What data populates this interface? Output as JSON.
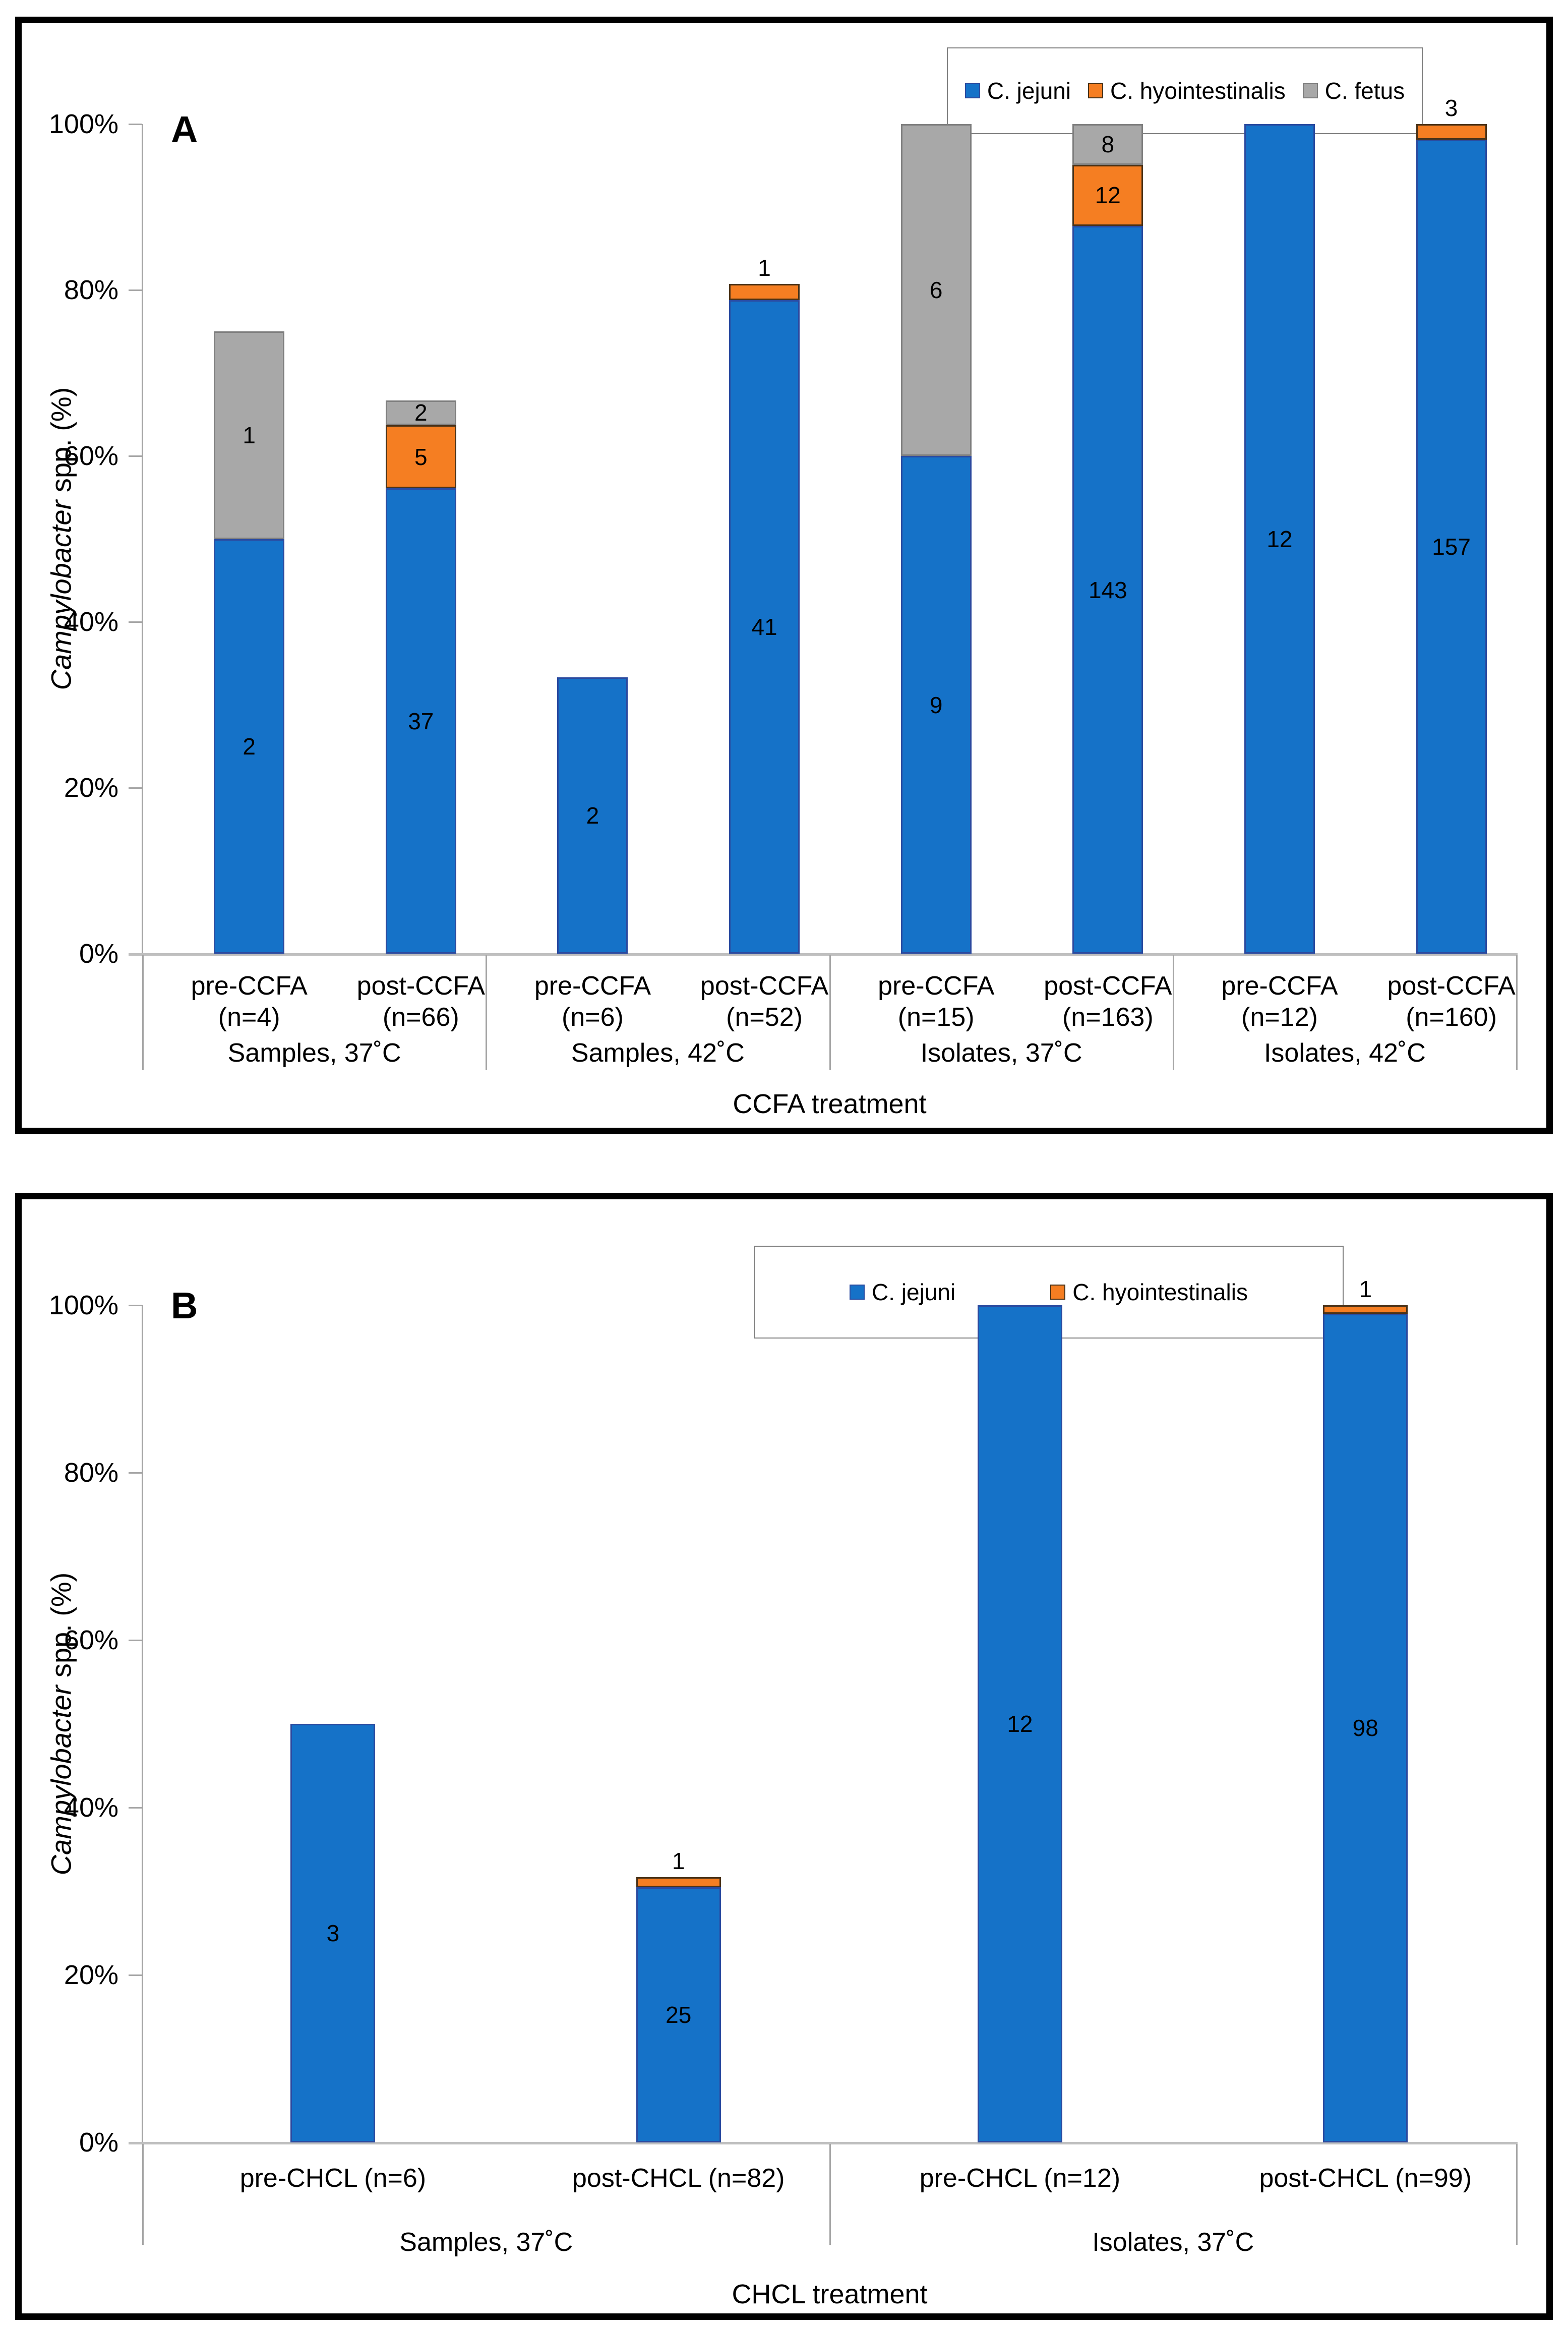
{
  "colors": {
    "c_jejuni_fill": "#1572C8",
    "c_jejuni_border": "#2B4BA0",
    "c_hyointestinalis_fill": "#F57E22",
    "c_hyointestinalis_border": "#4A3319",
    "c_fetus_fill": "#A8A8A8",
    "c_fetus_border": "#7F7F7F",
    "axis": "#A6A6A6",
    "x_baseline": "#BFBFBF",
    "panel_border": "#000000"
  },
  "chart_data": [
    {
      "type": "bar",
      "stacked": true,
      "panel_label": "A",
      "x_axis_title": "CCFA treatment",
      "y_axis_title": {
        "italic": "Campylobacter",
        "rest": " spp. (%)"
      },
      "ylim": [
        0,
        100
      ],
      "grid": false,
      "legend_position": "top-right",
      "yticks": [
        {
          "pct": 0,
          "label": "0%"
        },
        {
          "pct": 20,
          "label": "20%"
        },
        {
          "pct": 40,
          "label": "40%"
        },
        {
          "pct": 60,
          "label": "60%"
        },
        {
          "pct": 80,
          "label": "80%"
        },
        {
          "pct": 100,
          "label": "100%"
        }
      ],
      "series": [
        {
          "key": "jejuni",
          "name": "C. jejuni",
          "fill": "#1572C8",
          "border": "#2B4BA0"
        },
        {
          "key": "hyointestinalis",
          "name": "C. hyointestinalis",
          "fill": "#F57E22",
          "border": "#4A3319"
        },
        {
          "key": "fetus",
          "name": "C. fetus",
          "fill": "#A8A8A8",
          "border": "#7F7F7F"
        }
      ],
      "groups": [
        {
          "label": "Samples, 37˚C",
          "bars": [
            {
              "x_label_lines": [
                "pre-CCFA",
                "(n=4)"
              ],
              "segments": [
                {
                  "series": "jejuni",
                  "count": 2,
                  "pct": 50.0
                },
                {
                  "series": "fetus",
                  "count": 1,
                  "pct": 25.0
                }
              ]
            },
            {
              "x_label_lines": [
                "post-CCFA",
                "(n=66)"
              ],
              "segments": [
                {
                  "series": "jejuni",
                  "count": 37,
                  "pct": 56.1
                },
                {
                  "series": "hyointestinalis",
                  "count": 5,
                  "pct": 7.6
                },
                {
                  "series": "fetus",
                  "count": 2,
                  "pct": 3.0
                }
              ]
            }
          ]
        },
        {
          "label": "Samples, 42˚C",
          "bars": [
            {
              "x_label_lines": [
                "pre-CCFA",
                "(n=6)"
              ],
              "segments": [
                {
                  "series": "jejuni",
                  "count": 2,
                  "pct": 33.3
                }
              ]
            },
            {
              "x_label_lines": [
                "post-CCFA",
                "(n=52)"
              ],
              "segments": [
                {
                  "series": "jejuni",
                  "count": 41,
                  "pct": 78.8
                },
                {
                  "series": "hyointestinalis",
                  "count": 1,
                  "pct": 1.9
                }
              ]
            }
          ]
        },
        {
          "label": "Isolates, 37˚C",
          "bars": [
            {
              "x_label_lines": [
                "pre-CCFA",
                "(n=15)"
              ],
              "segments": [
                {
                  "series": "jejuni",
                  "count": 9,
                  "pct": 60.0
                },
                {
                  "series": "fetus",
                  "count": 6,
                  "pct": 40.0
                }
              ]
            },
            {
              "x_label_lines": [
                "post-CCFA",
                "(n=163)"
              ],
              "segments": [
                {
                  "series": "jejuni",
                  "count": 143,
                  "pct": 87.7
                },
                {
                  "series": "hyointestinalis",
                  "count": 12,
                  "pct": 7.4
                },
                {
                  "series": "fetus",
                  "count": 8,
                  "pct": 4.9
                }
              ]
            }
          ]
        },
        {
          "label": "Isolates, 42˚C",
          "bars": [
            {
              "x_label_lines": [
                "pre-CCFA",
                "(n=12)"
              ],
              "segments": [
                {
                  "series": "jejuni",
                  "count": 12,
                  "pct": 100.0
                }
              ]
            },
            {
              "x_label_lines": [
                "post-CCFA",
                "(n=160)"
              ],
              "segments": [
                {
                  "series": "jejuni",
                  "count": 157,
                  "pct": 98.1
                },
                {
                  "series": "hyointestinalis",
                  "count": 3,
                  "pct": 1.9
                }
              ]
            }
          ]
        }
      ]
    },
    {
      "type": "bar",
      "stacked": true,
      "panel_label": "B",
      "x_axis_title": "CHCL treatment",
      "y_axis_title": {
        "italic": "Campylobacter",
        "rest": " spp. (%)"
      },
      "ylim": [
        0,
        100
      ],
      "grid": false,
      "legend_position": "top-center",
      "yticks": [
        {
          "pct": 0,
          "label": "0%"
        },
        {
          "pct": 20,
          "label": "20%"
        },
        {
          "pct": 40,
          "label": "40%"
        },
        {
          "pct": 60,
          "label": "60%"
        },
        {
          "pct": 80,
          "label": "80%"
        },
        {
          "pct": 100,
          "label": "100%"
        }
      ],
      "series": [
        {
          "key": "jejuni",
          "name": "C. jejuni",
          "fill": "#1572C8",
          "border": "#2B4BA0"
        },
        {
          "key": "hyointestinalis",
          "name": "C. hyointestinalis",
          "fill": "#F57E22",
          "border": "#4A3319"
        }
      ],
      "groups": [
        {
          "label": "Samples, 37˚C",
          "bars": [
            {
              "x_label_lines": [
                "pre-CHCL (n=6)"
              ],
              "segments": [
                {
                  "series": "jejuni",
                  "count": 3,
                  "pct": 50.0
                }
              ]
            },
            {
              "x_label_lines": [
                "post-CHCL (n=82)"
              ],
              "segments": [
                {
                  "series": "jejuni",
                  "count": 25,
                  "pct": 30.5
                },
                {
                  "series": "hyointestinalis",
                  "count": 1,
                  "pct": 1.2
                }
              ]
            }
          ]
        },
        {
          "label": "Isolates, 37˚C",
          "bars": [
            {
              "x_label_lines": [
                "pre-CHCL (n=12)"
              ],
              "segments": [
                {
                  "series": "jejuni",
                  "count": 12,
                  "pct": 100.0
                }
              ]
            },
            {
              "x_label_lines": [
                "post-CHCL (n=99)"
              ],
              "segments": [
                {
                  "series": "jejuni",
                  "count": 98,
                  "pct": 99.0
                },
                {
                  "series": "hyointestinalis",
                  "count": 1,
                  "pct": 1.0
                }
              ]
            }
          ]
        }
      ]
    }
  ]
}
